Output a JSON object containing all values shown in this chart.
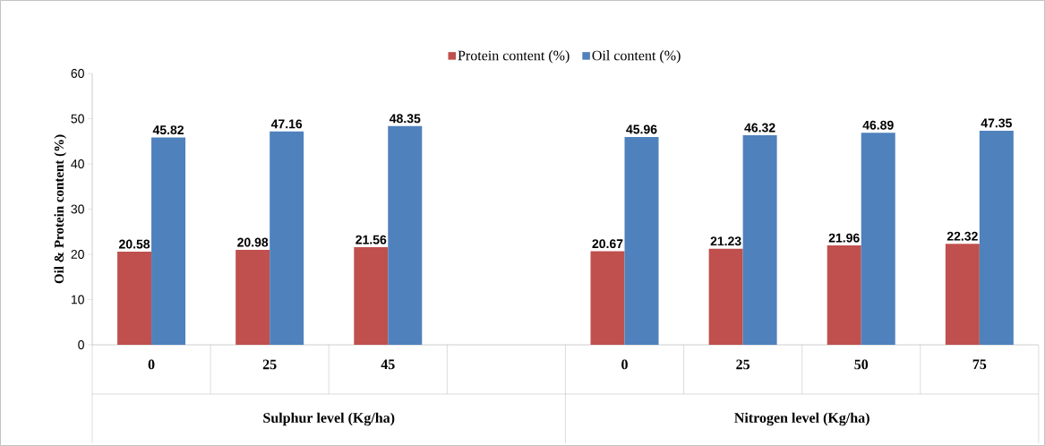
{
  "chart_data": {
    "type": "bar",
    "ylabel": "Oil & Protein content (%)",
    "categories": [
      "0",
      "25",
      "45",
      null,
      "0",
      "25",
      "50",
      "75"
    ],
    "series": [
      {
        "name": "Protein content (%)",
        "color": "#c0504d",
        "values": [
          20.58,
          20.98,
          21.56,
          null,
          20.67,
          21.23,
          21.96,
          22.32
        ]
      },
      {
        "name": "Oil content (%)",
        "color": "#4f81bd",
        "values": [
          45.82,
          47.16,
          48.35,
          null,
          45.96,
          46.32,
          46.89,
          47.35
        ]
      }
    ],
    "ylim": [
      0,
      60
    ],
    "yticks": [
      0,
      10,
      20,
      30,
      40,
      50,
      60
    ],
    "data_labels": true,
    "legend": "top",
    "annotations": [
      "Sulphur level (Kg/ha)",
      "Nitrogen level (Kg/ha)"
    ]
  }
}
